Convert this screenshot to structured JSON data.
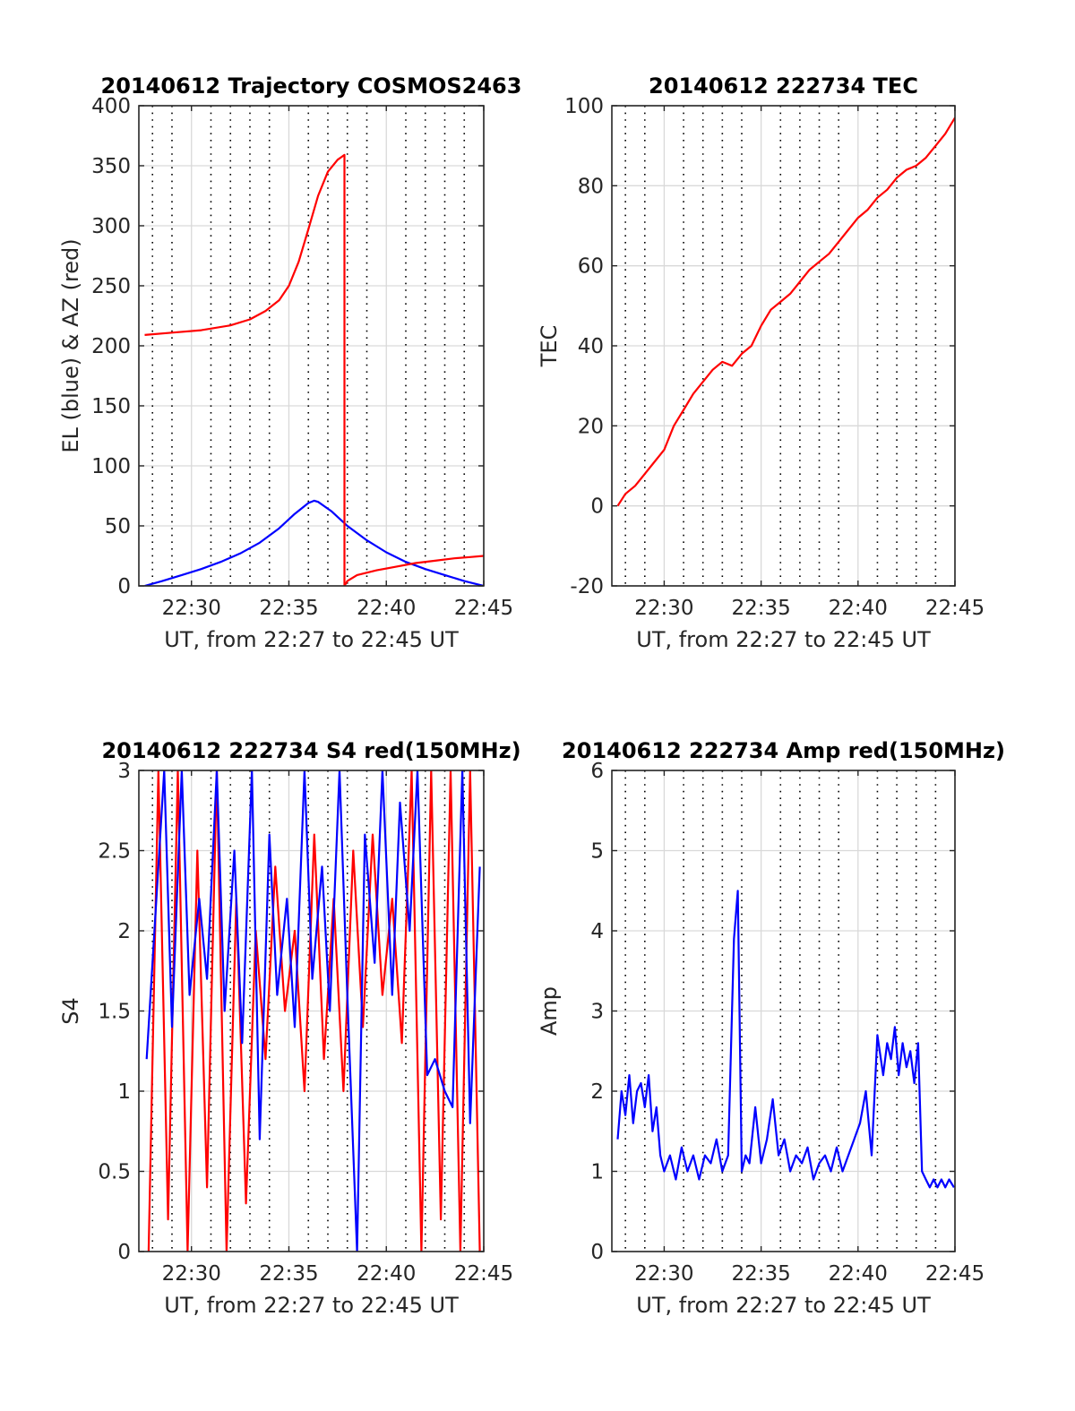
{
  "colors": {
    "el": "#0000ff",
    "az": "#ff0000",
    "grid": "#d9d9d9",
    "minor": "#000000",
    "axes": "#262626"
  },
  "chart_data": [
    {
      "type": "line",
      "title": "20140612 Trajectory COSMOS2463",
      "xlabel": "UT, from 22:27 to 22:45 UT",
      "ylabel": "EL (blue) & AZ (red)",
      "xlim": [
        27.3,
        45.0
      ],
      "ylim": [
        0,
        400
      ],
      "yticks": [
        0,
        50,
        100,
        150,
        200,
        250,
        300,
        350,
        400
      ],
      "xticks": [
        30,
        35,
        40,
        45
      ],
      "xtick_labels": [
        "22:30",
        "22:35",
        "22:40",
        "22:45"
      ],
      "minor_x": [
        28,
        29,
        31,
        32,
        33,
        34,
        36,
        37,
        38,
        39,
        41,
        42,
        43,
        44
      ],
      "grid": true,
      "series": [
        {
          "name": "EL",
          "color": "#0000ff",
          "x": [
            27.6,
            28.5,
            29.5,
            30.5,
            31.5,
            32.5,
            33.5,
            34.5,
            35.3,
            36.0,
            36.3,
            36.5,
            37.2,
            38.0,
            39.0,
            40.0,
            41.0,
            42.0,
            43.0,
            44.0,
            45.0
          ],
          "y": [
            0,
            4,
            9,
            14,
            20,
            27,
            36,
            48,
            60,
            69,
            71,
            70,
            62,
            50,
            38,
            28,
            20,
            14,
            9,
            4,
            0
          ]
        },
        {
          "name": "AZ",
          "color": "#ff0000",
          "x": [
            27.6,
            29.0,
            30.5,
            32.0,
            33.0,
            33.8,
            34.5,
            35.0,
            35.5,
            36.0,
            36.5,
            37.0,
            37.5,
            37.85,
            37.85,
            38.0,
            38.5,
            39.5,
            40.5,
            41.5,
            42.5,
            43.5,
            44.3,
            45.0
          ],
          "y": [
            209,
            211,
            213,
            217,
            222,
            229,
            238,
            250,
            270,
            297,
            325,
            345,
            355,
            359,
            0,
            4,
            9,
            13,
            16,
            19,
            21,
            23,
            24,
            25
          ]
        }
      ]
    },
    {
      "type": "line",
      "title": "20140612 222734 TEC",
      "xlabel": "UT, from 22:27 to 22:45 UT",
      "ylabel": "TEC",
      "xlim": [
        27.3,
        45.0
      ],
      "ylim": [
        -20,
        100
      ],
      "yticks": [
        -20,
        0,
        20,
        40,
        60,
        80,
        100
      ],
      "xticks": [
        30,
        35,
        40,
        45
      ],
      "xtick_labels": [
        "22:30",
        "22:35",
        "22:40",
        "22:45"
      ],
      "minor_x": [
        28,
        29,
        31,
        32,
        33,
        34,
        36,
        37,
        38,
        39,
        41,
        42,
        43,
        44
      ],
      "grid": true,
      "series": [
        {
          "name": "TEC",
          "color": "#ff0000",
          "x": [
            27.6,
            28.0,
            28.5,
            29.0,
            29.5,
            30.0,
            30.5,
            31.0,
            31.5,
            32.0,
            32.5,
            33.0,
            33.5,
            34.0,
            34.5,
            35.0,
            35.5,
            36.0,
            36.5,
            37.0,
            37.5,
            38.0,
            38.5,
            39.0,
            39.5,
            40.0,
            40.5,
            41.0,
            41.5,
            42.0,
            42.5,
            43.0,
            43.5,
            44.0,
            44.5,
            45.0
          ],
          "y": [
            0,
            3,
            5,
            8,
            11,
            14,
            20,
            24,
            28,
            31,
            34,
            36,
            35,
            38,
            40,
            45,
            49,
            51,
            53,
            56,
            59,
            61,
            63,
            66,
            69,
            72,
            74,
            77,
            79,
            82,
            84,
            85,
            87,
            90,
            93,
            97
          ]
        }
      ]
    },
    {
      "type": "line",
      "title": "20140612 222734 S4 red(150MHz)",
      "xlabel": "UT, from 22:27 to 22:45 UT",
      "ylabel": "S4",
      "xlim": [
        27.3,
        45.0
      ],
      "ylim": [
        0,
        3
      ],
      "yticks": [
        0,
        0.5,
        1,
        1.5,
        2,
        2.5,
        3
      ],
      "ytick_labels": [
        "0",
        "0.5",
        "1",
        "1.5",
        "2",
        "2.5",
        "3"
      ],
      "xticks": [
        30,
        35,
        40,
        45
      ],
      "xtick_labels": [
        "22:30",
        "22:35",
        "22:40",
        "22:45"
      ],
      "minor_x": [
        28,
        29,
        31,
        32,
        33,
        34,
        36,
        37,
        38,
        39,
        41,
        42,
        43,
        44
      ],
      "grid": true,
      "series": [
        {
          "name": "S4 red",
          "color": "#ff0000",
          "x": [
            27.8,
            28.3,
            28.8,
            29.3,
            29.8,
            30.3,
            30.8,
            31.3,
            31.8,
            32.3,
            32.8,
            33.3,
            33.8,
            34.3,
            34.8,
            35.3,
            35.8,
            36.3,
            36.8,
            37.3,
            37.8,
            38.3,
            38.8,
            39.3,
            39.8,
            40.3,
            40.8,
            41.3,
            41.8,
            42.3,
            42.8,
            43.3,
            43.8,
            44.3,
            44.8
          ],
          "y": [
            0,
            3,
            0.2,
            3,
            0,
            2.5,
            0.4,
            3,
            0,
            2.2,
            0.3,
            2.0,
            1.2,
            2.4,
            1.5,
            2.0,
            1.0,
            2.6,
            1.2,
            2.2,
            1.0,
            2.5,
            1.4,
            2.6,
            1.6,
            2.2,
            1.3,
            3,
            0,
            3,
            0.2,
            3,
            0,
            3,
            0
          ]
        },
        {
          "name": "S4 blue",
          "color": "#0000ff",
          "x": [
            27.7,
            28.1,
            28.6,
            29.0,
            29.5,
            29.9,
            30.4,
            30.8,
            31.3,
            31.7,
            32.2,
            32.6,
            33.1,
            33.5,
            34.0,
            34.4,
            34.9,
            35.3,
            35.8,
            36.2,
            36.7,
            37.1,
            37.6,
            38.0,
            38.5,
            38.9,
            39.4,
            39.8,
            40.3,
            40.7,
            41.2,
            41.6,
            42.1,
            42.5,
            43.0,
            43.4,
            43.9,
            44.3,
            44.8
          ],
          "y": [
            1.2,
            2.0,
            3.0,
            1.4,
            3.0,
            1.6,
            2.2,
            1.7,
            3.0,
            1.5,
            2.5,
            1.3,
            3.0,
            0.7,
            2.6,
            1.6,
            2.2,
            1.4,
            3.0,
            1.7,
            2.4,
            1.5,
            3.0,
            1.6,
            0.0,
            2.6,
            1.8,
            3.0,
            1.6,
            2.8,
            2.0,
            3.0,
            1.1,
            1.2,
            1.0,
            0.9,
            3.0,
            0.8,
            2.4
          ]
        }
      ]
    },
    {
      "type": "line",
      "title": "20140612 222734 Amp red(150MHz)",
      "xlabel": "UT, from 22:27 to 22:45 UT",
      "ylabel": "Amp",
      "xlim": [
        27.3,
        45.0
      ],
      "ylim": [
        0,
        6
      ],
      "yticks": [
        0,
        1,
        2,
        3,
        4,
        5,
        6
      ],
      "xticks": [
        30,
        35,
        40,
        45
      ],
      "xtick_labels": [
        "22:30",
        "22:35",
        "22:40",
        "22:45"
      ],
      "minor_x": [
        28,
        29,
        31,
        32,
        33,
        34,
        36,
        37,
        38,
        39,
        41,
        42,
        43,
        44
      ],
      "grid": true,
      "series": [
        {
          "name": "Amp",
          "color": "#0000ff",
          "x": [
            27.6,
            27.8,
            28.0,
            28.2,
            28.4,
            28.6,
            28.8,
            29.0,
            29.2,
            29.4,
            29.6,
            29.8,
            30.0,
            30.3,
            30.6,
            30.9,
            31.2,
            31.5,
            31.8,
            32.1,
            32.4,
            32.7,
            33.0,
            33.3,
            33.6,
            33.8,
            34.0,
            34.2,
            34.4,
            34.7,
            35.0,
            35.3,
            35.6,
            35.9,
            36.2,
            36.5,
            36.8,
            37.1,
            37.4,
            37.7,
            38.0,
            38.3,
            38.6,
            38.9,
            39.2,
            39.5,
            39.8,
            40.1,
            40.4,
            40.7,
            41.0,
            41.3,
            41.5,
            41.7,
            41.9,
            42.1,
            42.3,
            42.5,
            42.7,
            42.9,
            43.1,
            43.3,
            43.5,
            43.7,
            43.9,
            44.1,
            44.3,
            44.5,
            44.7,
            44.95
          ],
          "y": [
            1.4,
            2.0,
            1.7,
            2.2,
            1.6,
            2.0,
            2.1,
            1.8,
            2.2,
            1.5,
            1.8,
            1.2,
            1.0,
            1.2,
            0.9,
            1.3,
            1.0,
            1.2,
            0.9,
            1.2,
            1.1,
            1.4,
            1.0,
            1.2,
            3.9,
            4.5,
            1.0,
            1.2,
            1.1,
            1.8,
            1.1,
            1.4,
            1.9,
            1.2,
            1.4,
            1.0,
            1.2,
            1.1,
            1.3,
            0.9,
            1.1,
            1.2,
            1.0,
            1.3,
            1.0,
            1.2,
            1.4,
            1.6,
            2.0,
            1.2,
            2.7,
            2.2,
            2.6,
            2.4,
            2.8,
            2.2,
            2.6,
            2.3,
            2.5,
            2.1,
            2.6,
            1.0,
            0.9,
            0.8,
            0.9,
            0.8,
            0.9,
            0.8,
            0.9,
            0.8
          ]
        }
      ]
    }
  ]
}
